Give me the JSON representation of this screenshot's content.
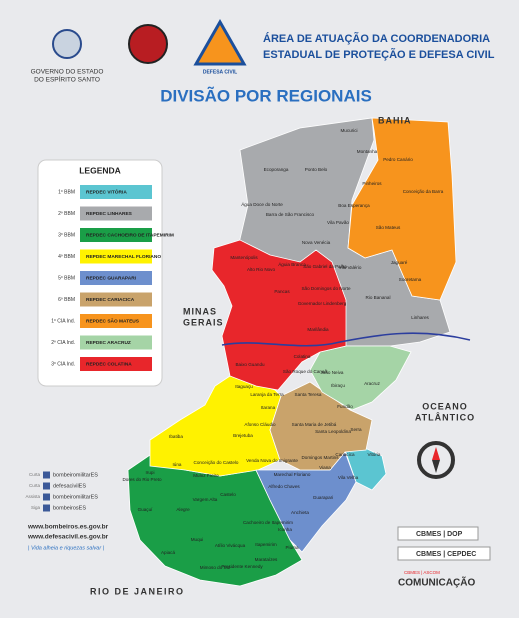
{
  "header": {
    "logos": {
      "state_line1": "GOVERNO DO ESTADO",
      "state_line2": "DO ESPÍRITO SANTO",
      "civil_defense": "DEFESA CIVIL"
    },
    "title_line1": "ÁREA DE ATUAÇÃO DA COORDENADORIA",
    "title_line2": "ESTADUAL DE PROTEÇÃO E DEFESA CIVIL"
  },
  "map_title": "DIVISÃO POR REGIONAIS",
  "legend": {
    "title": "LEGENDA",
    "items": [
      {
        "unit": "1º BBM",
        "label": "REPDEC VITÓRIA",
        "color": "#5bc5d1"
      },
      {
        "unit": "2º BBM",
        "label": "REPDEC LINHARES",
        "color": "#a8aaad"
      },
      {
        "unit": "3º BBM",
        "label": "REPDEC CACHOEIRO DE ITAPEMIRIM",
        "color": "#1a9e47"
      },
      {
        "unit": "4º BBM",
        "label": "REPDEC MARECHAL FLORIANO",
        "color": "#fff200"
      },
      {
        "unit": "5º BBM",
        "label": "REPDEC GUARAPARI",
        "color": "#6d8fcd"
      },
      {
        "unit": "6º BBM",
        "label": "REPDEC CARIACICA",
        "color": "#c9a36b"
      },
      {
        "unit": "1º CIA Ind.",
        "label": "REPDEC SÃO MATEUS",
        "color": "#f7941d"
      },
      {
        "unit": "2º CIA Ind.",
        "label": "REPDEC ARACRUZ",
        "color": "#a5d4a6"
      },
      {
        "unit": "3º CIA Ind.",
        "label": "REPDEC COLATINA",
        "color": "#e8262b"
      }
    ]
  },
  "neighbors": {
    "north": "BAHIA",
    "west_line1": "MINAS",
    "west_line2": "GERAIS",
    "east_line1": "OCEANO",
    "east_line2": "ATLÂNTICO",
    "south": "RIO DE JANEIRO"
  },
  "municipalities": [
    "Mucurici",
    "Montanha",
    "Pedro Canário",
    "Ecoporanga",
    "Ponto Belo",
    "Pinheiros",
    "Conceição da Barra",
    "Água Doce do Norte",
    "Barra de São Francisco",
    "Boa Esperança",
    "São Mateus",
    "Nova Venécia",
    "Vila Pavão",
    "Jaguaré",
    "Mantenópolis",
    "Águia Branca",
    "São Gabriel da Palha",
    "Vila Valério",
    "Sooretama",
    "Alto Rio Novo",
    "Pancas",
    "São Domingos do Norte",
    "Governador Lindenberg",
    "Rio Bananal",
    "Linhares",
    "Marilândia",
    "Baixo Guandu",
    "Colatina",
    "São Roque do Canaã",
    "João Neiva",
    "Ibiraçu",
    "Aracruz",
    "Itaguaçu",
    "Laranja da Terra",
    "Itarana",
    "Santa Teresa",
    "Fundão",
    "Afonso Cláudio",
    "Brejetuba",
    "Santa Maria de Jetibá",
    "Santa Leopoldina",
    "Serra",
    "Cariacica",
    "Vitória",
    "Ibatiba",
    "Conceição do Castelo",
    "Domingos Martins",
    "Venda Nova do Imigrante",
    "Viana",
    "Vila Velha",
    "Irupi",
    "Iúna",
    "Muniz Freire",
    "Marechal Floriano",
    "Guarapari",
    "Alfredo Chaves",
    "Dores do Rio Preto",
    "Guaçuí",
    "Alegre",
    "Castelo",
    "Vargem Alta",
    "Cachoeiro de Itapemirim",
    "Anchieta",
    "Iconha",
    "Piúma",
    "Itapemirim",
    "Mimoso do Sul",
    "Muqui",
    "Atílio Vivácqua",
    "Apiacá",
    "Presidente Kennedy",
    "Marataízes"
  ],
  "social": [
    {
      "verb": "Curta",
      "handle": "bombeiromilitarES"
    },
    {
      "verb": "Curta",
      "handle": "defesacivilES"
    },
    {
      "verb": "Assista",
      "handle": "bombeiromilitarES"
    },
    {
      "verb": "Siga",
      "handle": "bombeirosES"
    }
  ],
  "websites": [
    "www.bombeiros.es.gov.br",
    "www.defesacivil.es.gov.br"
  ],
  "motto": "| Vida alheia e riquezas salvar |",
  "credits": [
    "CBMES | DOP",
    "CBMES | CEPDEC",
    "CBMES | ASCOM"
  ],
  "credits_brand": "COMUNICAÇÃO"
}
